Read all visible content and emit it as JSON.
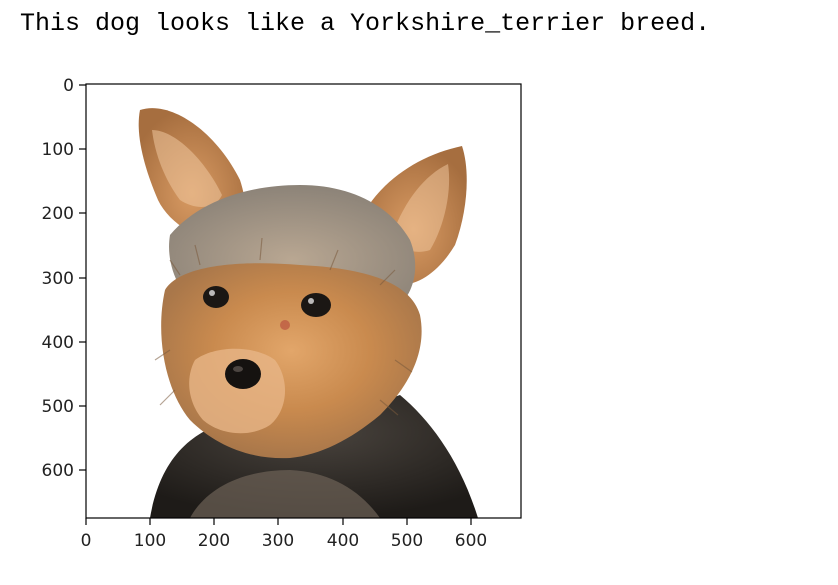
{
  "output": {
    "text": "This dog looks like a Yorkshire_terrier breed."
  },
  "plot": {
    "image_icon": "yorkshire-terrier-photo",
    "x_ticks": [
      "0",
      "100",
      "200",
      "300",
      "400",
      "500",
      "600"
    ],
    "y_ticks": [
      "0",
      "100",
      "200",
      "300",
      "400",
      "500",
      "600"
    ],
    "colors": {
      "frame": "#000000",
      "fur_tan": "#c98a4e",
      "fur_dark": "#2a2622",
      "fur_grey": "#9c948a"
    }
  }
}
